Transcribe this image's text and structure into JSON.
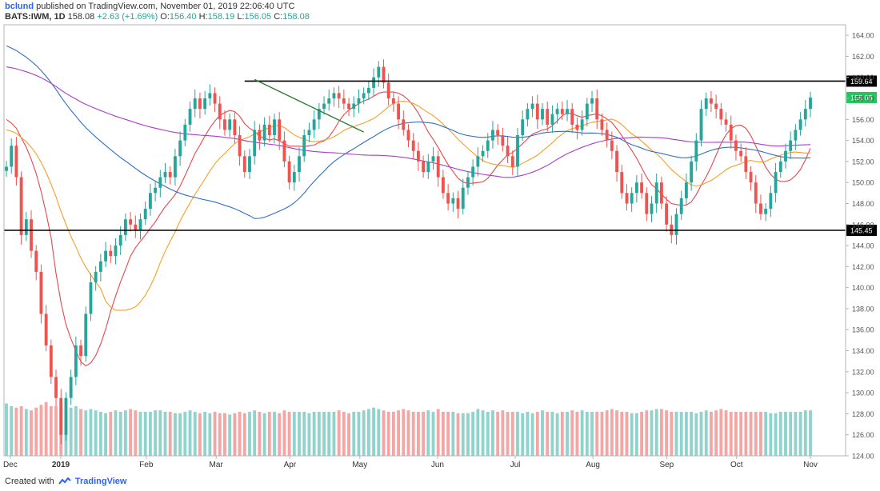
{
  "header": {
    "user": "bclund",
    "published_text": "published on TradingView.com, November 01, 2019 22:06:40 UTC",
    "symbol": "BATS:IWM, 1D",
    "last": "158.08",
    "change": "+2.63 (+1.69%)",
    "o_label": "O:",
    "o_value": "156.40",
    "h_label": "H:",
    "h_value": "158.19",
    "l_label": "L:",
    "l_value": "156.05",
    "c_label": "C:",
    "c_value": "158.08"
  },
  "footer": {
    "created_with": "Created with",
    "brand": "TradingView"
  },
  "colors": {
    "up": "#26a69a",
    "down": "#ef5350",
    "vol_up": "#8fd3cc",
    "vol_down": "#f4a6a4",
    "ma_red": "#e5484d",
    "ma_orange": "#f59f28",
    "ma_blue": "#2f6fbd",
    "ma_purple": "#a63ec9",
    "level_line": "#000000",
    "trend_line": "#2e7d32",
    "price_tag": "#22c55e"
  },
  "chart_data": {
    "type": "candlestick",
    "title": "",
    "xlabel": "",
    "ylabel": "",
    "ylim": [
      124,
      165
    ],
    "y_ticks": [
      "164.00",
      "162.00",
      "160.00",
      "158.00",
      "156.00",
      "154.00",
      "152.00",
      "150.00",
      "148.00",
      "146.00",
      "144.00",
      "142.00",
      "140.00",
      "138.00",
      "136.00",
      "134.00",
      "132.00",
      "130.00",
      "128.00",
      "126.00",
      "124.00"
    ],
    "x_ticks": [
      "Dec",
      "2019",
      "Feb",
      "Mar",
      "Apr",
      "May",
      "Jun",
      "Jul",
      "Aug",
      "Sep",
      "Oct",
      "Nov"
    ],
    "horizontal_levels": [
      {
        "value": 159.64,
        "label": "159.64"
      },
      {
        "value": 145.45,
        "label": "145.45"
      }
    ],
    "current_price_label": "158.08",
    "trendline": {
      "from": [
        50,
        159.8
      ],
      "to": [
        72,
        154.8
      ]
    },
    "closes": [
      151.5,
      153.5,
      150.5,
      145,
      146.5,
      143.5,
      141.5,
      137.5,
      134.5,
      131.5,
      129.5,
      126,
      129.5,
      131.5,
      134.5,
      133.5,
      137.5,
      140.5,
      141.5,
      142.5,
      143.5,
      143,
      144,
      145,
      146.5,
      146,
      145.5,
      146.5,
      147.5,
      149,
      149.5,
      150.5,
      151,
      150.5,
      152.5,
      154,
      155.5,
      157,
      158,
      157,
      158,
      158.5,
      157.5,
      156,
      155,
      156,
      154.5,
      152.5,
      151,
      152.5,
      155,
      154,
      155.5,
      154.5,
      156,
      154,
      152,
      150,
      151,
      152.5,
      154.5,
      155,
      156,
      157,
      157.5,
      158,
      158.5,
      158,
      157.5,
      157,
      157.5,
      158,
      158.5,
      159,
      160,
      161,
      159.5,
      158,
      157.5,
      156,
      155,
      154,
      153,
      152,
      151,
      152,
      152.5,
      150.5,
      149,
      148,
      148.5,
      147.5,
      149.5,
      150.5,
      151.5,
      152.5,
      153,
      154,
      155,
      154.5,
      153.5,
      152.5,
      151.5,
      154.5,
      156,
      157,
      157.5,
      156,
      157,
      155.5,
      156.5,
      157,
      156.5,
      157,
      155.5,
      155,
      156,
      157.5,
      158,
      156,
      155,
      154,
      153,
      151,
      149,
      148,
      149,
      150,
      149,
      147,
      148,
      150,
      148,
      146,
      145,
      147,
      148.5,
      150,
      152,
      154,
      157,
      158,
      157.5,
      157,
      156,
      155.5,
      154,
      153,
      152.5,
      151,
      150,
      148,
      147,
      147.5,
      149,
      151,
      152,
      153,
      154,
      155,
      156,
      157,
      158.08
    ],
    "volumes": [
      32,
      30,
      29,
      30,
      28,
      27,
      29,
      31,
      33,
      30,
      30,
      28,
      27,
      29,
      30,
      28,
      27,
      28,
      27,
      26,
      25,
      26,
      27,
      26,
      27,
      28,
      27,
      26,
      26,
      26,
      27,
      27,
      26,
      26,
      25,
      25,
      26,
      27,
      26,
      25,
      26,
      25,
      26,
      25,
      25,
      24,
      25,
      26,
      25,
      26,
      27,
      26,
      25,
      26,
      26,
      25,
      27,
      26,
      26,
      26,
      26,
      25,
      26,
      26,
      26,
      26,
      26,
      27,
      26,
      25,
      26,
      26,
      27,
      28,
      29,
      28,
      27,
      26,
      26,
      27,
      28,
      27,
      26,
      26,
      26,
      27,
      26,
      28,
      26,
      26,
      26,
      25,
      25,
      25,
      26,
      28,
      27,
      26,
      27,
      26,
      27,
      26,
      26,
      26,
      25,
      26,
      25,
      26,
      27,
      26,
      26,
      25,
      26,
      26,
      27,
      26,
      27,
      26,
      26,
      26,
      26,
      27,
      28,
      27,
      26,
      26,
      25,
      25,
      26,
      27,
      27,
      28,
      28,
      27,
      26,
      26,
      26,
      26,
      26,
      25,
      26,
      27,
      26,
      27,
      28,
      27,
      26,
      26,
      26,
      26,
      26,
      26,
      26,
      26,
      25,
      25,
      26,
      26,
      26,
      26,
      26,
      27,
      27,
      28,
      27
    ],
    "series": [
      {
        "name": "",
        "color_key": "ma_red"
      },
      {
        "name": "",
        "color_key": "ma_orange"
      },
      {
        "name": "",
        "color_key": "ma_blue"
      },
      {
        "name": "",
        "color_key": "ma_purple"
      }
    ]
  }
}
